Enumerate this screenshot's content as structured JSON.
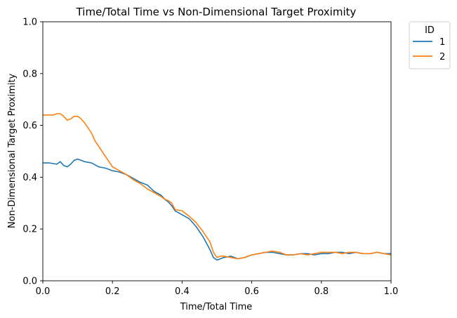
{
  "chart_data": {
    "type": "line",
    "title": "Time/Total Time vs Non-Dimensional Target Proximity",
    "xlabel": "Time/Total Time",
    "ylabel": "Non-Dimensional Target Proximity",
    "xlim": [
      0,
      1
    ],
    "ylim": [
      0,
      1
    ],
    "xticks": [
      "0.0",
      "0.2",
      "0.4",
      "0.6",
      "0.8",
      "1.0"
    ],
    "yticks": [
      "0.0",
      "0.2",
      "0.4",
      "0.6",
      "0.8",
      "1.0"
    ],
    "grid": false,
    "legend": {
      "title": "ID",
      "placement": "outside-top-right"
    },
    "series": [
      {
        "name": "1",
        "color": "#1f77b4",
        "x": [
          0.0,
          0.02,
          0.04,
          0.05,
          0.06,
          0.07,
          0.08,
          0.09,
          0.1,
          0.11,
          0.12,
          0.14,
          0.16,
          0.18,
          0.2,
          0.22,
          0.24,
          0.26,
          0.28,
          0.3,
          0.32,
          0.34,
          0.35,
          0.36,
          0.37,
          0.38,
          0.4,
          0.42,
          0.44,
          0.46,
          0.48,
          0.49,
          0.5,
          0.51,
          0.52,
          0.54,
          0.56,
          0.58,
          0.6,
          0.62,
          0.64,
          0.66,
          0.68,
          0.7,
          0.72,
          0.74,
          0.76,
          0.78,
          0.8,
          0.82,
          0.84,
          0.86,
          0.88,
          0.9,
          0.92,
          0.94,
          0.96,
          0.98,
          1.0
        ],
        "y": [
          0.455,
          0.455,
          0.45,
          0.46,
          0.445,
          0.44,
          0.45,
          0.465,
          0.47,
          0.465,
          0.46,
          0.455,
          0.44,
          0.435,
          0.425,
          0.42,
          0.41,
          0.395,
          0.38,
          0.37,
          0.345,
          0.33,
          0.315,
          0.305,
          0.29,
          0.27,
          0.255,
          0.24,
          0.21,
          0.17,
          0.12,
          0.09,
          0.08,
          0.085,
          0.09,
          0.095,
          0.085,
          0.09,
          0.1,
          0.105,
          0.11,
          0.11,
          0.105,
          0.1,
          0.1,
          0.105,
          0.105,
          0.1,
          0.105,
          0.105,
          0.11,
          0.11,
          0.105,
          0.11,
          0.105,
          0.105,
          0.11,
          0.105,
          0.105
        ]
      },
      {
        "name": "2",
        "color": "#ff7f0e",
        "x": [
          0.0,
          0.02,
          0.03,
          0.04,
          0.05,
          0.06,
          0.07,
          0.08,
          0.09,
          0.1,
          0.11,
          0.12,
          0.13,
          0.14,
          0.15,
          0.16,
          0.17,
          0.18,
          0.2,
          0.22,
          0.24,
          0.26,
          0.28,
          0.3,
          0.32,
          0.34,
          0.35,
          0.36,
          0.37,
          0.38,
          0.4,
          0.42,
          0.44,
          0.46,
          0.48,
          0.49,
          0.5,
          0.51,
          0.52,
          0.54,
          0.56,
          0.58,
          0.6,
          0.62,
          0.64,
          0.66,
          0.68,
          0.7,
          0.72,
          0.74,
          0.76,
          0.78,
          0.8,
          0.82,
          0.84,
          0.86,
          0.88,
          0.9,
          0.92,
          0.94,
          0.96,
          0.98,
          1.0
        ],
        "y": [
          0.64,
          0.64,
          0.64,
          0.645,
          0.645,
          0.635,
          0.62,
          0.625,
          0.635,
          0.635,
          0.625,
          0.61,
          0.59,
          0.57,
          0.54,
          0.52,
          0.5,
          0.48,
          0.44,
          0.425,
          0.41,
          0.39,
          0.375,
          0.355,
          0.34,
          0.325,
          0.315,
          0.31,
          0.3,
          0.275,
          0.27,
          0.25,
          0.225,
          0.19,
          0.15,
          0.11,
          0.09,
          0.095,
          0.095,
          0.09,
          0.085,
          0.09,
          0.1,
          0.105,
          0.11,
          0.115,
          0.11,
          0.1,
          0.1,
          0.105,
          0.1,
          0.105,
          0.11,
          0.11,
          0.11,
          0.105,
          0.11,
          0.11,
          0.105,
          0.105,
          0.11,
          0.105,
          0.1
        ]
      }
    ]
  }
}
